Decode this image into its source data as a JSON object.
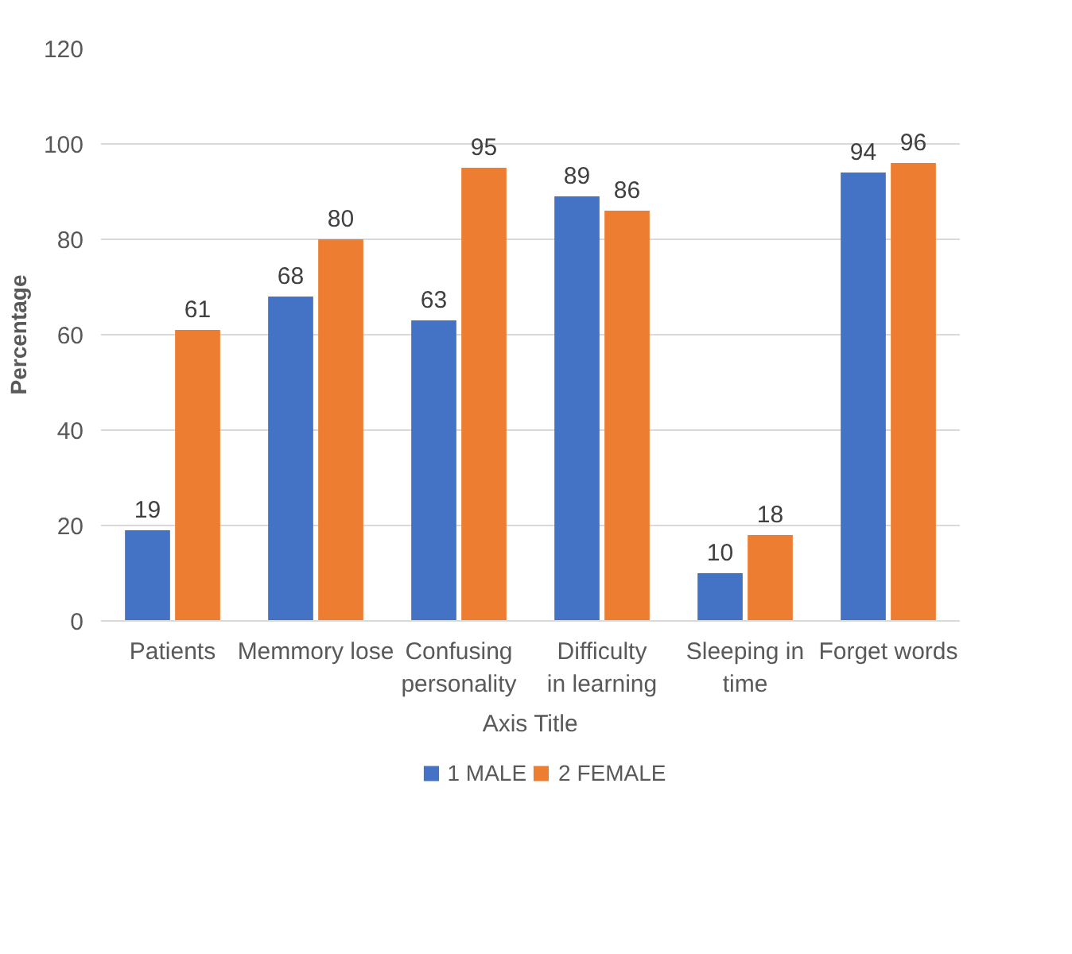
{
  "chart_data": {
    "type": "bar",
    "categories": [
      "Patients",
      "Memmory lose",
      "Confusing personality",
      "Difficulty in learning",
      "Sleeping in time",
      "Forget words"
    ],
    "series": [
      {
        "name": "1 MALE",
        "color": "#4472c4",
        "values": [
          19,
          68,
          63,
          89,
          10,
          94
        ]
      },
      {
        "name": "2 FEMALE",
        "color": "#ed7d31",
        "values": [
          61,
          80,
          95,
          86,
          18,
          96
        ]
      }
    ],
    "xlabel": "Axis Title",
    "ylabel": "Percentage",
    "ylim": [
      0,
      120
    ],
    "yticks": [
      0,
      20,
      40,
      60,
      80,
      100,
      120
    ],
    "grid": "y",
    "legend": "bottom",
    "data_labels": true
  }
}
